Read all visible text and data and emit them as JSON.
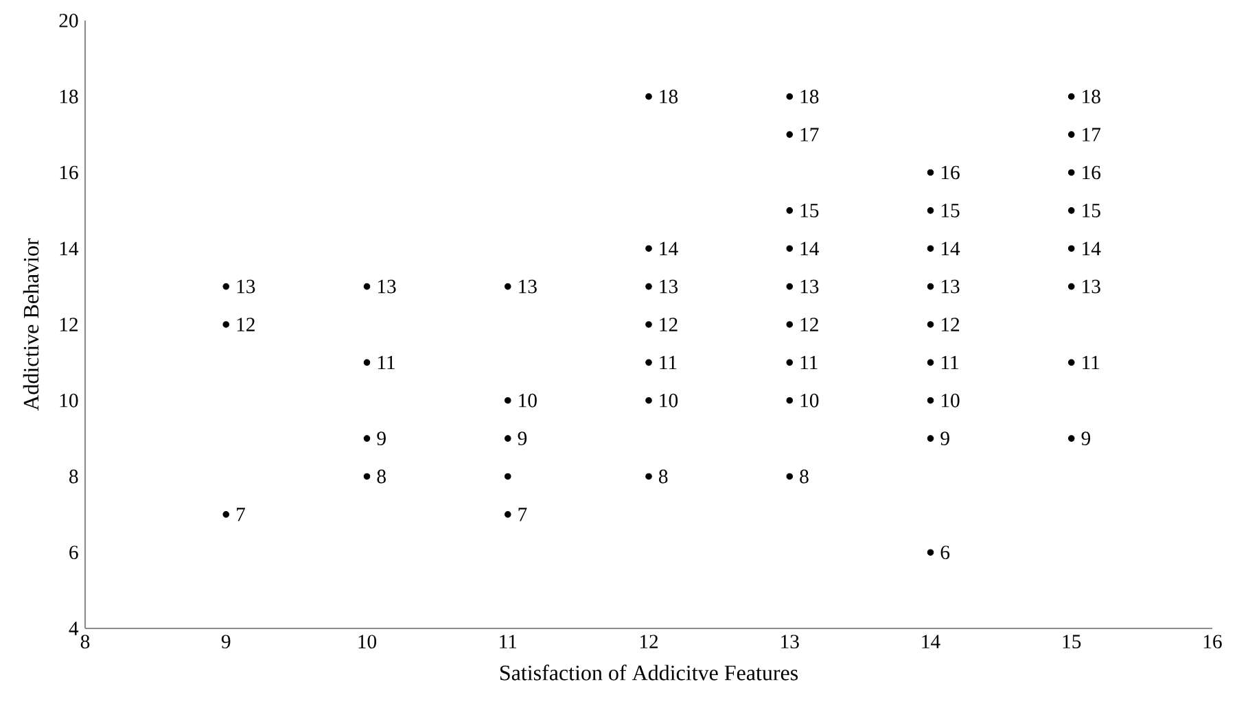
{
  "chart_data": {
    "type": "scatter",
    "xlabel": "Satisfaction of Addicitve Features",
    "ylabel": "Addictive Behavior",
    "xlim": [
      8,
      16
    ],
    "ylim": [
      4,
      20
    ],
    "xticks": [
      8,
      9,
      10,
      11,
      12,
      13,
      14,
      15,
      16
    ],
    "yticks": [
      4,
      6,
      8,
      10,
      12,
      14,
      16,
      18,
      20
    ],
    "grid": false,
    "marker": "circle",
    "color": "#000000",
    "x": [
      9,
      9,
      9,
      10,
      10,
      10,
      10,
      11,
      11,
      11,
      11,
      11,
      12,
      12,
      12,
      12,
      12,
      12,
      12,
      13,
      13,
      13,
      13,
      13,
      13,
      13,
      13,
      13,
      14,
      14,
      14,
      14,
      14,
      14,
      14,
      14,
      14,
      15,
      15,
      15,
      15,
      15,
      15,
      15,
      15
    ],
    "values": [
      13,
      12,
      7,
      13,
      11,
      9,
      8,
      13,
      10,
      9,
      8,
      7,
      18,
      14,
      13,
      12,
      11,
      10,
      8,
      18,
      17,
      15,
      14,
      13,
      12,
      11,
      10,
      8,
      16,
      15,
      14,
      13,
      12,
      11,
      10,
      9,
      6,
      18,
      17,
      16,
      15,
      14,
      13,
      11,
      9
    ],
    "value_labels": [
      "13",
      "12",
      "7",
      "13",
      "11",
      "9",
      "8",
      "13",
      "10",
      "9",
      null,
      "7",
      "18",
      "14",
      "13",
      "12",
      "11",
      "10",
      "8",
      "18",
      "17",
      "15",
      "14",
      "13",
      "12",
      "11",
      "10",
      "8",
      "16",
      "15",
      "14",
      "13",
      "12",
      "11",
      "10",
      "9",
      "6",
      "18",
      "17",
      "16",
      "15",
      "14",
      "13",
      "11",
      "9"
    ]
  }
}
